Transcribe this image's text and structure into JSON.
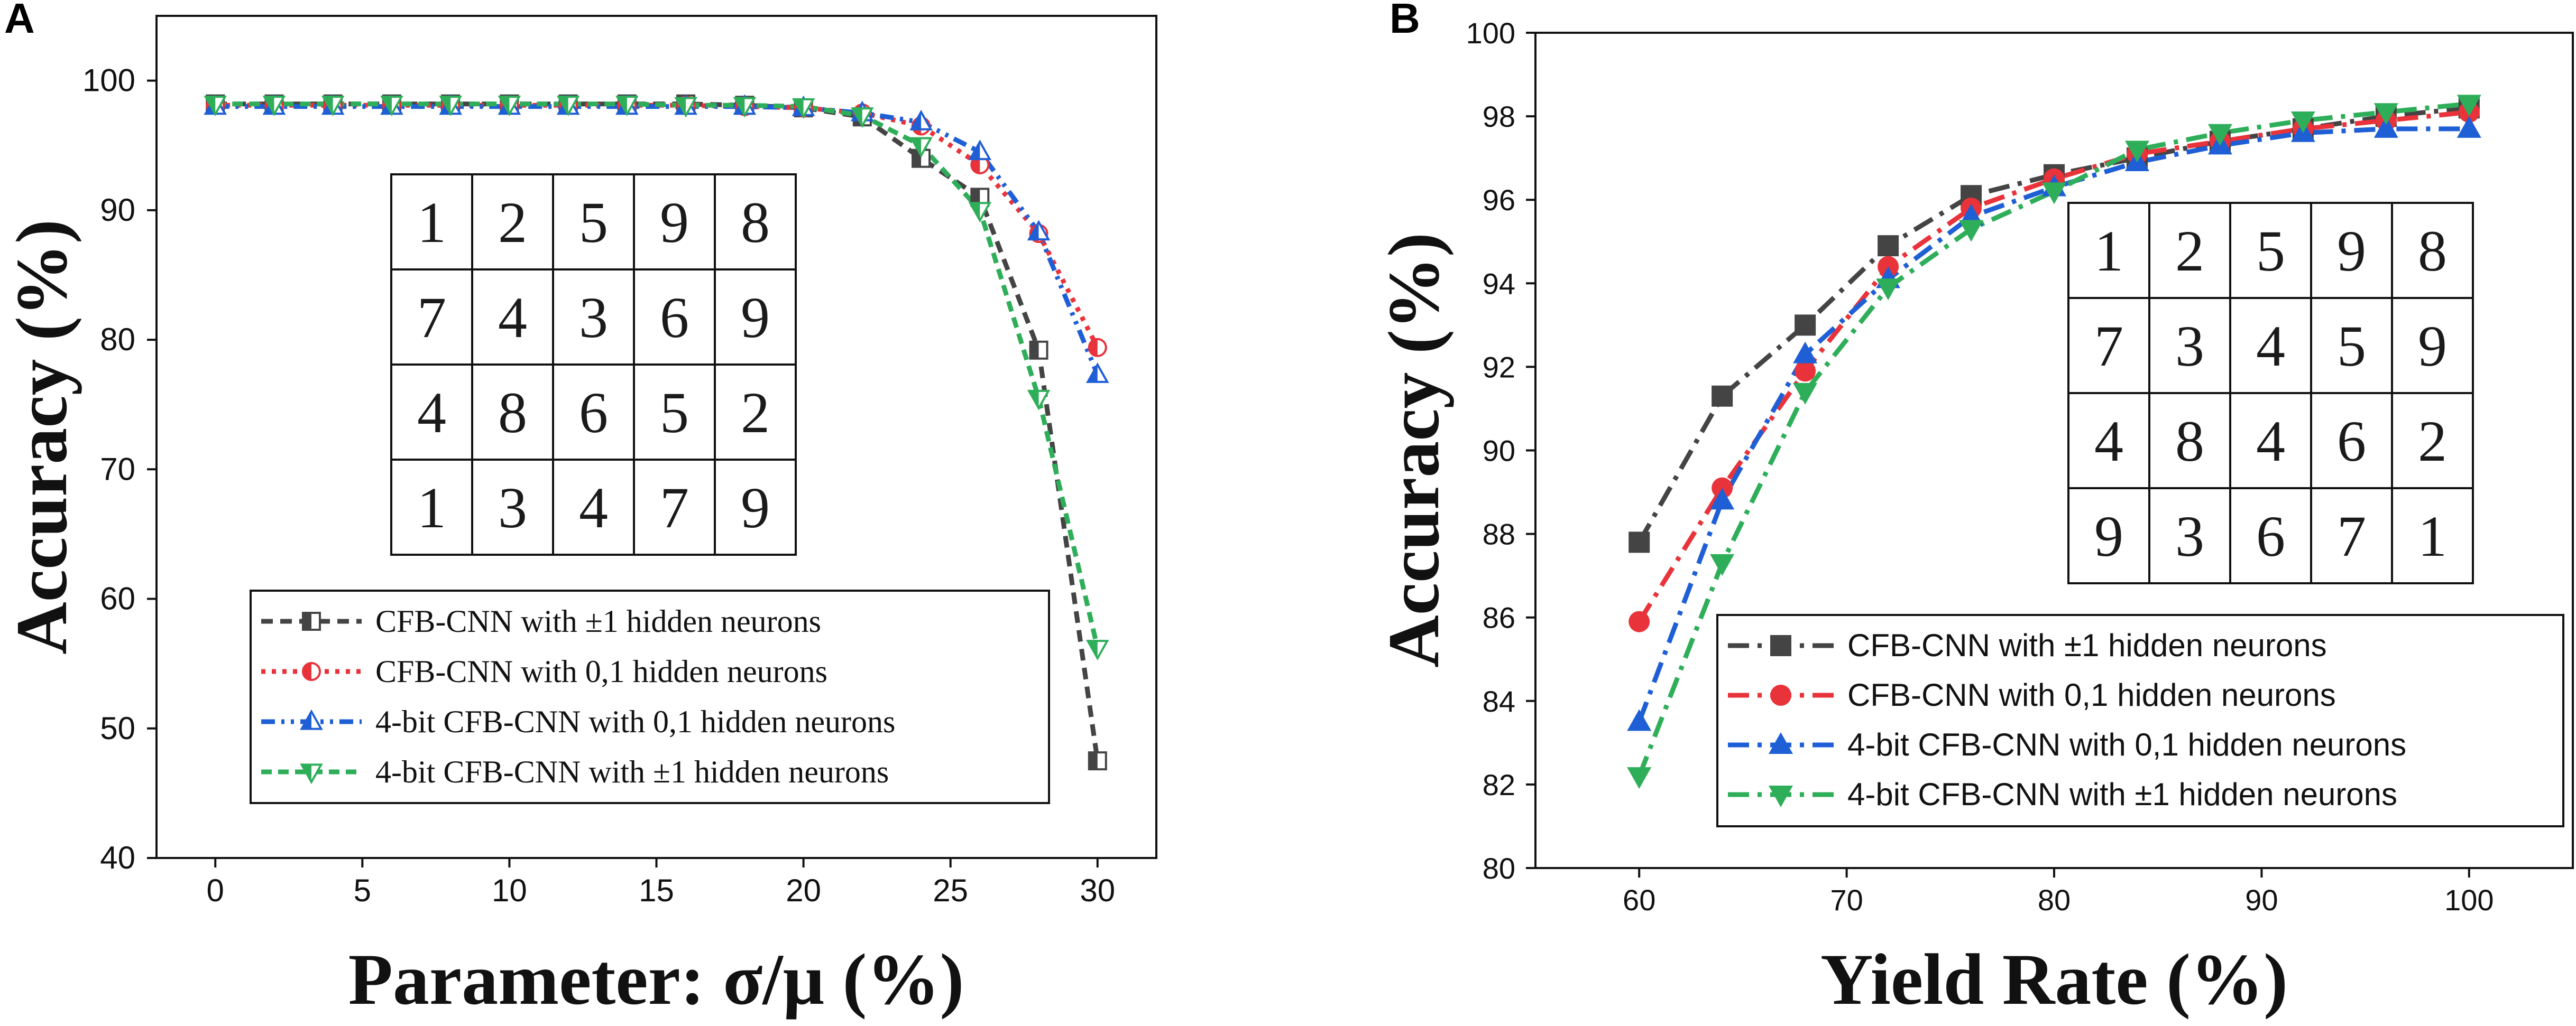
{
  "colors": {
    "series": [
      "#444444",
      "#e8333a",
      "#1f5fd6",
      "#2fae5a"
    ]
  },
  "chart_data": [
    {
      "panel": "A",
      "type": "line",
      "title": "",
      "xlabel": "Parameter: σ/μ (%)",
      "ylabel": "Accuracy (%)",
      "xlim": [
        -2,
        32
      ],
      "ylim": [
        40,
        105
      ],
      "xticks": [
        0,
        5,
        10,
        15,
        20,
        25,
        30
      ],
      "yticks": [
        40,
        50,
        60,
        70,
        80,
        90,
        100
      ],
      "x": [
        0,
        2,
        4,
        6,
        8,
        10,
        12,
        14,
        16,
        18,
        20,
        22,
        24,
        26,
        28,
        30
      ],
      "series": [
        {
          "name": "CFB-CNN with ±1 hidden neurons",
          "marker": "half-square",
          "dash": "short",
          "values": [
            98.2,
            98.2,
            98.2,
            98.2,
            98.2,
            98.2,
            98.2,
            98.2,
            98.2,
            98.1,
            97.9,
            97.2,
            94.0,
            91.0,
            79.2,
            47.5
          ]
        },
        {
          "name": "CFB-CNN with 0,1 hidden neurons",
          "marker": "half-circle",
          "dash": "dashdot",
          "values": [
            98.1,
            98.1,
            98.1,
            98.1,
            98.1,
            98.1,
            98.1,
            98.1,
            98.1,
            98.0,
            97.9,
            97.5,
            96.5,
            93.5,
            88.2,
            79.4
          ]
        },
        {
          "name": "4-bit CFB-CNN with 0,1 hidden neurons",
          "marker": "half-triangle-up",
          "dash": "dashdotdot",
          "values": [
            98.0,
            98.0,
            98.0,
            98.0,
            98.0,
            98.0,
            98.0,
            98.0,
            98.0,
            98.0,
            97.9,
            97.5,
            96.8,
            94.5,
            88.3,
            77.3
          ]
        },
        {
          "name": "4-bit CFB-CNN with ±1 hidden neurons",
          "marker": "half-triangle-down",
          "dash": "dash",
          "values": [
            98.2,
            98.2,
            98.2,
            98.2,
            98.2,
            98.2,
            98.2,
            98.2,
            98.1,
            98.1,
            98.0,
            97.3,
            95.0,
            90.0,
            75.5,
            56.2
          ]
        }
      ],
      "inset_digits": [
        [
          "1",
          "2",
          "5",
          "9",
          "8"
        ],
        [
          "7",
          "4",
          "3",
          "6",
          "9"
        ],
        [
          "4",
          "8",
          "6",
          "5",
          "2"
        ],
        [
          "1",
          "3",
          "4",
          "7",
          "9"
        ]
      ],
      "legend": "lower-center"
    },
    {
      "panel": "B",
      "type": "line",
      "title": "",
      "xlabel": "Yield Rate (%)",
      "ylabel": "Accuracy (%)",
      "xlim": [
        55,
        105
      ],
      "ylim": [
        80,
        100
      ],
      "xticks": [
        60,
        70,
        80,
        90,
        100
      ],
      "yticks": [
        80,
        82,
        84,
        86,
        88,
        90,
        92,
        94,
        96,
        98,
        100
      ],
      "x": [
        60,
        64,
        68,
        72,
        76,
        80,
        84,
        88,
        92,
        96,
        100
      ],
      "series": [
        {
          "name": "CFB-CNN with ±1 hidden neurons",
          "marker": "square",
          "dash": "dashdot",
          "values": [
            87.8,
            91.3,
            93.0,
            94.9,
            96.1,
            96.6,
            97.0,
            97.4,
            97.7,
            98.0,
            98.2
          ]
        },
        {
          "name": "CFB-CNN with 0,1 hidden neurons",
          "marker": "circle",
          "dash": "dashdot",
          "values": [
            85.9,
            89.1,
            91.9,
            94.4,
            95.8,
            96.5,
            97.1,
            97.4,
            97.7,
            97.9,
            98.1
          ]
        },
        {
          "name": "4-bit CFB-CNN with 0,1 hidden neurons",
          "marker": "triangle-up",
          "dash": "dashdot",
          "values": [
            83.5,
            88.8,
            92.3,
            94.1,
            95.6,
            96.3,
            96.9,
            97.3,
            97.6,
            97.7,
            97.7
          ]
        },
        {
          "name": "4-bit CFB-CNN with ±1 hidden neurons",
          "marker": "triangle-down",
          "dash": "dashdot",
          "values": [
            82.2,
            87.3,
            91.4,
            93.9,
            95.3,
            96.2,
            97.2,
            97.6,
            97.9,
            98.1,
            98.3
          ]
        }
      ],
      "inset_digits": [
        [
          "1",
          "2",
          "5",
          "9",
          "8"
        ],
        [
          "7",
          "3",
          "4",
          "5",
          "9"
        ],
        [
          "4",
          "8",
          "4",
          "6",
          "2"
        ],
        [
          "9",
          "3",
          "6",
          "7",
          "1"
        ]
      ],
      "legend": "lower-right"
    }
  ]
}
